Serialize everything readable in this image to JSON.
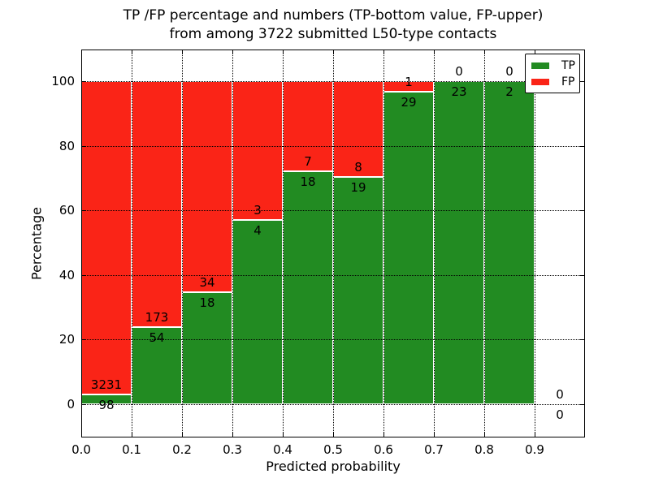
{
  "chart_data": {
    "type": "bar",
    "variant": "stacked-percentage-histogram",
    "title_line1": "TP /FP percentage and numbers (TP-bottom value, FP-upper)",
    "title_line2": "from among 3722 submitted L50-type contacts",
    "xlabel": "Predicted probability",
    "ylabel": "Percentage",
    "total_contacts": 3722,
    "x_tick_labels": [
      "0.0",
      "0.1",
      "0.2",
      "0.3",
      "0.4",
      "0.5",
      "0.6",
      "0.7",
      "0.8",
      "0.9"
    ],
    "y_tick_labels": [
      "0",
      "20",
      "40",
      "60",
      "80",
      "100"
    ],
    "xlim": [
      0.0,
      1.0
    ],
    "ylim": [
      -10,
      110
    ],
    "grid": {
      "style": "dotted",
      "color": "#000000",
      "on": true
    },
    "legend": {
      "position": "upper-right",
      "entries": [
        {
          "label": "TP",
          "color": "#228b22"
        },
        {
          "label": "FP",
          "color": "#fa2417"
        }
      ]
    },
    "bins": [
      {
        "range": "0.0-0.1",
        "tp": 98,
        "fp": 3231
      },
      {
        "range": "0.1-0.2",
        "tp": 54,
        "fp": 173
      },
      {
        "range": "0.2-0.3",
        "tp": 18,
        "fp": 34
      },
      {
        "range": "0.3-0.4",
        "tp": 4,
        "fp": 3
      },
      {
        "range": "0.4-0.5",
        "tp": 18,
        "fp": 7
      },
      {
        "range": "0.5-0.6",
        "tp": 19,
        "fp": 8
      },
      {
        "range": "0.6-0.7",
        "tp": 29,
        "fp": 1
      },
      {
        "range": "0.7-0.8",
        "tp": 23,
        "fp": 0
      },
      {
        "range": "0.8-0.9",
        "tp": 2,
        "fp": 0
      },
      {
        "range": "0.9-1.0",
        "tp": 0,
        "fp": 0
      }
    ],
    "colors": {
      "tp": "#228b22",
      "fp": "#fa2417",
      "bar_edge": "#ffffff",
      "text": "#000000",
      "background": "#ffffff"
    }
  }
}
